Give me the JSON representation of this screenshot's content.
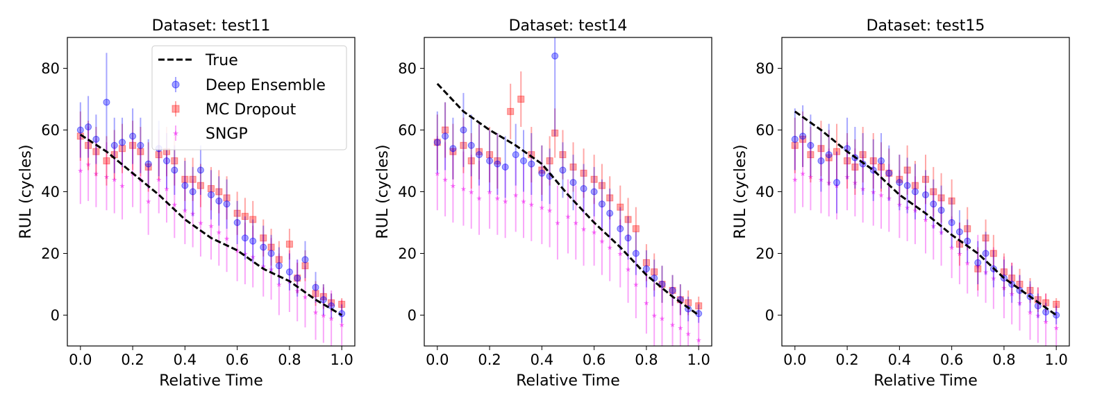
{
  "chart_data": [
    {
      "type": "scatter",
      "title": "Dataset: test11",
      "xlabel": "Relative Time",
      "ylabel": "RUL (cycles)",
      "xlim": [
        -0.05,
        1.05
      ],
      "ylim": [
        -10,
        90
      ],
      "xticks": [
        "0.0",
        "0.2",
        "0.4",
        "0.6",
        "0.8",
        "1.0"
      ],
      "yticks": [
        "0",
        "20",
        "40",
        "60",
        "80"
      ],
      "legend": {
        "position": "top-right",
        "entries": [
          "True",
          "Deep Ensemble",
          "MC Dropout",
          "SNGP"
        ]
      },
      "true_points": [
        [
          0.0,
          58.5
        ],
        [
          0.1,
          53
        ],
        [
          0.2,
          46
        ],
        [
          0.3,
          39
        ],
        [
          0.4,
          31
        ],
        [
          0.5,
          25
        ],
        [
          0.6,
          21
        ],
        [
          0.7,
          15
        ],
        [
          0.8,
          11
        ],
        [
          0.9,
          5
        ],
        [
          1.0,
          0
        ]
      ],
      "series": [
        {
          "name": "Deep Ensemble",
          "x": [
            0.0,
            0.03,
            0.06,
            0.1,
            0.13,
            0.16,
            0.2,
            0.23,
            0.26,
            0.3,
            0.33,
            0.36,
            0.4,
            0.43,
            0.46,
            0.5,
            0.53,
            0.56,
            0.6,
            0.63,
            0.66,
            0.7,
            0.73,
            0.76,
            0.8,
            0.83,
            0.86,
            0.9,
            0.93,
            0.96,
            1.0
          ],
          "y": [
            60,
            61,
            57,
            69,
            55,
            56,
            58,
            55,
            49,
            54,
            50,
            47,
            42,
            40,
            47,
            39,
            37,
            36,
            30,
            25,
            24,
            22,
            20,
            16,
            14,
            12,
            18,
            9,
            5,
            3,
            0.5
          ],
          "err": [
            9,
            10,
            8,
            16,
            9,
            8,
            9,
            9,
            8,
            9,
            9,
            8,
            8,
            8,
            8,
            8,
            8,
            8,
            7,
            7,
            7,
            7,
            6,
            6,
            6,
            6,
            6,
            5,
            5,
            4,
            3
          ]
        },
        {
          "name": "MC Dropout",
          "x": [
            0.0,
            0.03,
            0.06,
            0.1,
            0.13,
            0.16,
            0.2,
            0.23,
            0.26,
            0.3,
            0.33,
            0.36,
            0.4,
            0.43,
            0.46,
            0.5,
            0.53,
            0.56,
            0.6,
            0.63,
            0.66,
            0.7,
            0.73,
            0.76,
            0.8,
            0.83,
            0.86,
            0.9,
            0.93,
            0.96,
            1.0
          ],
          "y": [
            58,
            55,
            53,
            50,
            52,
            54,
            55,
            53,
            48,
            52,
            53,
            50,
            44,
            44,
            42,
            41,
            40,
            38,
            33,
            32,
            31,
            25,
            22,
            18,
            23,
            12,
            16,
            7,
            6,
            4,
            3.5
          ],
          "err": [
            8,
            8,
            8,
            8,
            8,
            8,
            8,
            8,
            8,
            8,
            8,
            8,
            7,
            7,
            7,
            7,
            7,
            7,
            7,
            6,
            6,
            6,
            6,
            6,
            5,
            5,
            5,
            4,
            4,
            3,
            2
          ]
        },
        {
          "name": "SNGP",
          "x": [
            0.0,
            0.03,
            0.06,
            0.1,
            0.13,
            0.16,
            0.2,
            0.23,
            0.26,
            0.3,
            0.33,
            0.36,
            0.4,
            0.43,
            0.46,
            0.5,
            0.53,
            0.56,
            0.6,
            0.63,
            0.66,
            0.7,
            0.73,
            0.76,
            0.8,
            0.83,
            0.86,
            0.9,
            0.93,
            0.96,
            1.0
          ],
          "y": [
            47,
            49,
            46,
            45,
            44,
            42,
            46,
            44,
            37,
            44,
            41,
            36,
            34,
            33,
            30,
            29,
            27,
            25,
            21,
            20,
            19,
            16,
            15,
            10,
            11,
            8,
            6,
            1,
            0,
            -1,
            -3
          ],
          "err": [
            11,
            12,
            11,
            11,
            11,
            11,
            11,
            11,
            11,
            11,
            11,
            11,
            11,
            11,
            11,
            11,
            11,
            11,
            10,
            10,
            10,
            10,
            10,
            10,
            10,
            10,
            10,
            9,
            9,
            9,
            8
          ]
        }
      ]
    },
    {
      "type": "scatter",
      "title": "Dataset: test14",
      "xlabel": "Relative Time",
      "ylabel": "RUL (cycles)",
      "xlim": [
        -0.05,
        1.05
      ],
      "ylim": [
        -10,
        90
      ],
      "xticks": [
        "0.0",
        "0.2",
        "0.4",
        "0.6",
        "0.8",
        "1.0"
      ],
      "yticks": [
        "0",
        "20",
        "40",
        "60",
        "80"
      ],
      "true_points": [
        [
          0.0,
          75
        ],
        [
          0.1,
          66
        ],
        [
          0.2,
          60
        ],
        [
          0.3,
          55
        ],
        [
          0.4,
          49
        ],
        [
          0.5,
          39
        ],
        [
          0.6,
          30
        ],
        [
          0.7,
          22
        ],
        [
          0.8,
          13
        ],
        [
          0.9,
          6
        ],
        [
          1.0,
          0
        ]
      ],
      "series": [
        {
          "name": "Deep Ensemble",
          "x": [
            0.0,
            0.03,
            0.06,
            0.1,
            0.13,
            0.16,
            0.2,
            0.23,
            0.26,
            0.3,
            0.33,
            0.36,
            0.4,
            0.43,
            0.45,
            0.48,
            0.52,
            0.56,
            0.6,
            0.63,
            0.66,
            0.7,
            0.73,
            0.76,
            0.8,
            0.83,
            0.86,
            0.9,
            0.93,
            0.96,
            1.0
          ],
          "y": [
            56,
            58,
            54,
            60,
            55,
            52,
            50,
            49,
            48,
            52,
            50,
            49,
            46,
            45,
            84,
            47,
            43,
            41,
            40,
            36,
            33,
            28,
            25,
            20,
            15,
            12,
            10,
            8,
            5,
            2,
            0.5
          ],
          "err": [
            10,
            11,
            10,
            12,
            10,
            10,
            10,
            10,
            10,
            10,
            10,
            10,
            9,
            9,
            26,
            9,
            9,
            8,
            8,
            8,
            8,
            7,
            7,
            7,
            6,
            6,
            6,
            5,
            5,
            4,
            3
          ]
        },
        {
          "name": "MC Dropout",
          "x": [
            0.0,
            0.03,
            0.06,
            0.1,
            0.13,
            0.16,
            0.2,
            0.23,
            0.28,
            0.32,
            0.36,
            0.4,
            0.43,
            0.45,
            0.48,
            0.52,
            0.56,
            0.6,
            0.63,
            0.66,
            0.7,
            0.73,
            0.76,
            0.8,
            0.83,
            0.86,
            0.9,
            0.93,
            0.96,
            1.0
          ],
          "y": [
            56,
            60,
            53,
            55,
            50,
            53,
            52,
            50,
            66,
            70,
            52,
            47,
            50,
            59,
            52,
            48,
            46,
            44,
            42,
            38,
            35,
            31,
            28,
            17,
            14,
            10,
            8,
            5,
            4,
            3
          ],
          "err": [
            9,
            9,
            9,
            9,
            9,
            9,
            9,
            9,
            9,
            9,
            9,
            8,
            8,
            8,
            8,
            8,
            8,
            8,
            7,
            7,
            7,
            7,
            7,
            6,
            6,
            6,
            5,
            5,
            4,
            3
          ]
        },
        {
          "name": "SNGP",
          "x": [
            0.0,
            0.03,
            0.06,
            0.1,
            0.13,
            0.16,
            0.2,
            0.23,
            0.26,
            0.3,
            0.33,
            0.36,
            0.4,
            0.43,
            0.46,
            0.5,
            0.53,
            0.56,
            0.6,
            0.63,
            0.66,
            0.7,
            0.73,
            0.76,
            0.8,
            0.83,
            0.86,
            0.9,
            0.93,
            0.96,
            1.0
          ],
          "y": [
            46,
            44,
            42,
            41,
            40,
            38,
            40,
            38,
            37,
            39,
            37,
            36,
            35,
            34,
            30,
            32,
            30,
            28,
            27,
            24,
            22,
            20,
            15,
            10,
            4,
            0,
            -1,
            -3,
            -4,
            -6,
            -8
          ],
          "err": [
            12,
            12,
            12,
            12,
            12,
            12,
            12,
            12,
            12,
            12,
            12,
            12,
            12,
            12,
            12,
            12,
            12,
            12,
            11,
            11,
            11,
            11,
            11,
            11,
            10,
            10,
            10,
            9,
            9,
            9,
            8
          ]
        }
      ]
    },
    {
      "type": "scatter",
      "title": "Dataset: test15",
      "xlabel": "Relative Time",
      "ylabel": "RUL (cycles)",
      "xlim": [
        -0.05,
        1.05
      ],
      "ylim": [
        -10,
        90
      ],
      "xticks": [
        "0.0",
        "0.2",
        "0.4",
        "0.6",
        "0.8",
        "1.0"
      ],
      "yticks": [
        "0",
        "20",
        "40",
        "60",
        "80"
      ],
      "true_points": [
        [
          0.0,
          66
        ],
        [
          0.1,
          60
        ],
        [
          0.2,
          53
        ],
        [
          0.3,
          47
        ],
        [
          0.4,
          39
        ],
        [
          0.5,
          33
        ],
        [
          0.6,
          26
        ],
        [
          0.7,
          20
        ],
        [
          0.8,
          12
        ],
        [
          0.9,
          6
        ],
        [
          1.0,
          0
        ]
      ],
      "series": [
        {
          "name": "Deep Ensemble",
          "x": [
            0.0,
            0.03,
            0.06,
            0.1,
            0.13,
            0.16,
            0.2,
            0.23,
            0.26,
            0.3,
            0.33,
            0.36,
            0.4,
            0.43,
            0.46,
            0.5,
            0.53,
            0.56,
            0.6,
            0.63,
            0.66,
            0.7,
            0.73,
            0.76,
            0.8,
            0.83,
            0.86,
            0.9,
            0.93,
            0.96,
            1.0
          ],
          "y": [
            57,
            58,
            55,
            50,
            52,
            43,
            54,
            51,
            49,
            47,
            50,
            46,
            43,
            42,
            40,
            39,
            36,
            34,
            30,
            27,
            24,
            17,
            20,
            15,
            12,
            10,
            8,
            6,
            3,
            1,
            0
          ],
          "err": [
            10,
            10,
            10,
            10,
            10,
            10,
            10,
            10,
            10,
            10,
            9,
            9,
            9,
            9,
            9,
            8,
            8,
            8,
            8,
            7,
            7,
            7,
            7,
            6,
            6,
            6,
            5,
            5,
            4,
            3,
            3
          ]
        },
        {
          "name": "MC Dropout",
          "x": [
            0.0,
            0.03,
            0.06,
            0.1,
            0.13,
            0.16,
            0.2,
            0.23,
            0.26,
            0.3,
            0.33,
            0.36,
            0.4,
            0.43,
            0.46,
            0.5,
            0.53,
            0.56,
            0.6,
            0.63,
            0.66,
            0.7,
            0.73,
            0.76,
            0.8,
            0.83,
            0.86,
            0.9,
            0.93,
            0.96,
            1.0
          ],
          "y": [
            55,
            57,
            52,
            54,
            51,
            53,
            50,
            48,
            52,
            50,
            48,
            46,
            44,
            47,
            42,
            44,
            40,
            38,
            37,
            23,
            28,
            15,
            25,
            20,
            14,
            12,
            10,
            8,
            5,
            4,
            3.5
          ],
          "err": [
            9,
            9,
            9,
            9,
            9,
            9,
            9,
            9,
            9,
            9,
            8,
            8,
            8,
            8,
            8,
            8,
            8,
            8,
            7,
            7,
            7,
            7,
            6,
            6,
            6,
            5,
            5,
            4,
            4,
            3,
            2
          ]
        },
        {
          "name": "SNGP",
          "x": [
            0.0,
            0.03,
            0.06,
            0.1,
            0.13,
            0.16,
            0.2,
            0.23,
            0.26,
            0.3,
            0.33,
            0.36,
            0.4,
            0.43,
            0.46,
            0.5,
            0.53,
            0.56,
            0.6,
            0.63,
            0.66,
            0.7,
            0.73,
            0.76,
            0.8,
            0.83,
            0.86,
            0.9,
            0.93,
            0.96,
            1.0
          ],
          "y": [
            44,
            46,
            45,
            44,
            43,
            42,
            45,
            43,
            41,
            40,
            39,
            38,
            36,
            35,
            34,
            31,
            29,
            27,
            22,
            20,
            17,
            16,
            14,
            12,
            9,
            7,
            4,
            1,
            0,
            -2,
            -4
          ],
          "err": [
            11,
            11,
            11,
            11,
            11,
            11,
            11,
            11,
            11,
            11,
            11,
            11,
            11,
            11,
            11,
            11,
            11,
            11,
            10,
            10,
            10,
            10,
            10,
            10,
            10,
            10,
            9,
            9,
            9,
            9,
            8
          ]
        }
      ]
    }
  ],
  "colors": {
    "true": "#000000",
    "deep_ensemble": "#0000ff",
    "mc_dropout": "#ff0000",
    "sngp": "#ee00ee"
  }
}
